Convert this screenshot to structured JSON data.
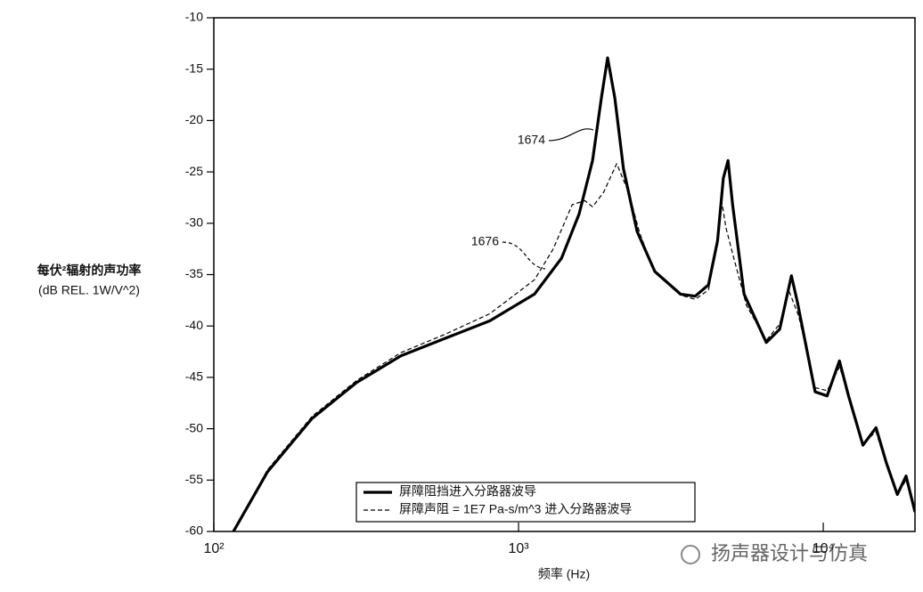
{
  "chart_data": {
    "type": "line",
    "y_label": [
      "每伏²辐射的声功率",
      "(dB REL. 1W/V^2)"
    ],
    "x_label": "频率 (Hz)",
    "log_x": true,
    "xlim": [
      100,
      20000
    ],
    "xticks": [
      {
        "value": 100,
        "label": "10²"
      },
      {
        "value": 1000,
        "label": "10³"
      },
      {
        "value": 10000,
        "label": "10⁴"
      }
    ],
    "ylim": [
      -60,
      -10
    ],
    "yticks": [
      -10,
      -15,
      -20,
      -25,
      -30,
      -35,
      -40,
      -45,
      -50,
      -55,
      -60
    ],
    "series": [
      {
        "name": "屏障阻挡进入分路器波导",
        "color": "#000000",
        "style": "solid",
        "x": [
          116,
          150,
          210,
          294,
          411,
          575,
          805,
          1128,
          1384,
          1580,
          1750,
          1870,
          1960,
          2070,
          2210,
          2450,
          2800,
          3400,
          3800,
          4200,
          4500,
          4700,
          4870,
          5040,
          5500,
          6500,
          7200,
          7860,
          8230,
          9400,
          10300,
          11300,
          12100,
          13500,
          14900,
          16100,
          17500,
          18700,
          20000
        ],
        "values": [
          -60,
          -54.2,
          -49,
          -45.5,
          -42.9,
          -41.2,
          -39.5,
          -36.9,
          -33.4,
          -29.1,
          -23.9,
          -17.8,
          -13.9,
          -17.8,
          -24.7,
          -30.8,
          -34.7,
          -36.9,
          -37.1,
          -36,
          -31.7,
          -25.6,
          -23.9,
          -28.2,
          -36.9,
          -41.6,
          -40.3,
          -35.1,
          -37.7,
          -46.4,
          -46.8,
          -43.4,
          -46.8,
          -51.6,
          -49.9,
          -53.3,
          -56.4,
          -54.6,
          -58.1
        ]
      },
      {
        "name": "屏障声阻 = 1E7 Pa-s/m^3 进入分路器波导",
        "color": "#000000",
        "style": "dashed",
        "x": [
          116,
          150,
          210,
          294,
          411,
          575,
          805,
          1128,
          1300,
          1500,
          1650,
          1750,
          1900,
          2100,
          2300,
          2500,
          2800,
          3400,
          3800,
          4200,
          4500,
          4650,
          4800,
          5100,
          5600,
          6500,
          7200,
          7700,
          8300,
          9400,
          10300,
          11300,
          12100,
          13500,
          14900,
          16100,
          17500,
          18700,
          20000
        ],
        "values": [
          -60,
          -54,
          -48.8,
          -45.3,
          -42.6,
          -40.8,
          -38.8,
          -35.5,
          -32.5,
          -28.2,
          -27.8,
          -28.4,
          -27,
          -24.2,
          -27,
          -31,
          -34.8,
          -37,
          -37.4,
          -36.5,
          -31.5,
          -28,
          -30.5,
          -33.5,
          -38,
          -41.4,
          -39.8,
          -36.5,
          -39,
          -46,
          -46.3,
          -44,
          -46.5,
          -51.4,
          -50.3,
          -53.5,
          -56.4,
          -55,
          -58
        ]
      }
    ],
    "annotations": [
      "1674",
      "1676"
    ],
    "watermark": "扬声器设计与仿真"
  }
}
